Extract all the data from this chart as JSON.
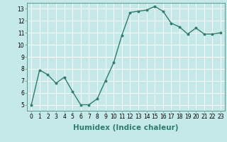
{
  "x": [
    0,
    1,
    2,
    3,
    4,
    5,
    6,
    7,
    8,
    9,
    10,
    11,
    12,
    13,
    14,
    15,
    16,
    17,
    18,
    19,
    20,
    21,
    22,
    23
  ],
  "y": [
    5.0,
    7.9,
    7.5,
    6.8,
    7.3,
    6.1,
    5.0,
    5.0,
    5.5,
    7.0,
    8.5,
    10.8,
    12.7,
    12.8,
    12.9,
    13.2,
    12.8,
    11.8,
    11.5,
    10.9,
    11.4,
    10.9,
    10.9,
    11.0
  ],
  "line_color": "#2e7d6e",
  "marker": "o",
  "markersize": 1.8,
  "linewidth": 1.0,
  "xlabel": "Humidex (Indice chaleur)",
  "ylim": [
    4.5,
    13.5
  ],
  "xlim": [
    -0.5,
    23.5
  ],
  "yticks": [
    5,
    6,
    7,
    8,
    9,
    10,
    11,
    12,
    13
  ],
  "xticks": [
    0,
    1,
    2,
    3,
    4,
    5,
    6,
    7,
    8,
    9,
    10,
    11,
    12,
    13,
    14,
    15,
    16,
    17,
    18,
    19,
    20,
    21,
    22,
    23
  ],
  "xtick_labels": [
    "0",
    "1",
    "2",
    "3",
    "4",
    "5",
    "6",
    "7",
    "8",
    "9",
    "10",
    "11",
    "12",
    "13",
    "14",
    "15",
    "16",
    "17",
    "18",
    "19",
    "20",
    "21",
    "22",
    "23"
  ],
  "bg_color": "#c5e8e8",
  "grid_color": "#ffffff",
  "tick_fontsize": 5.5,
  "xlabel_fontsize": 7.5,
  "spine_color": "#5a9a8a"
}
